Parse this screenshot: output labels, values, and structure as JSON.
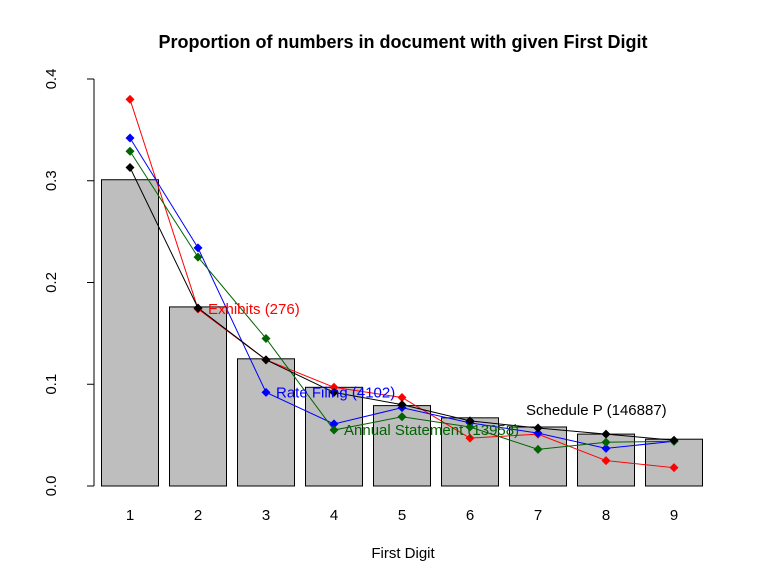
{
  "chart_data": {
    "type": "bar",
    "title": "Proportion of numbers in document with given First Digit",
    "xlabel": "First Digit",
    "ylabel": "",
    "ylim": [
      0,
      0.4
    ],
    "y_ticks": [
      "0.0",
      "0.1",
      "0.2",
      "0.3",
      "0.4"
    ],
    "y_tick_values": [
      0,
      0.1,
      0.2,
      0.3,
      0.4
    ],
    "categories": [
      "1",
      "2",
      "3",
      "4",
      "5",
      "6",
      "7",
      "8",
      "9"
    ],
    "bar_color": "#bebebe",
    "bars": [
      0.301,
      0.176,
      0.125,
      0.097,
      0.079,
      0.067,
      0.058,
      0.051,
      0.046
    ],
    "grid": false,
    "series": [
      {
        "name": "Exhibits (276)",
        "color": "#ff0000",
        "values": [
          0.38,
          0.174,
          0.124,
          0.097,
          0.087,
          0.047,
          0.051,
          0.025,
          0.018
        ],
        "label_at": 1
      },
      {
        "name": "Rate Filing (4102)",
        "color": "#0000ff",
        "values": [
          0.342,
          0.234,
          0.092,
          0.061,
          0.077,
          0.062,
          0.052,
          0.037,
          0.044
        ],
        "label_at": 2
      },
      {
        "name": "Annual Statement (13958)",
        "color": "#006400",
        "values": [
          0.329,
          0.225,
          0.145,
          0.055,
          0.068,
          0.058,
          0.036,
          0.043,
          0.044
        ],
        "label_at": 3
      },
      {
        "name": "Schedule P (146887)",
        "color": "#000000",
        "values": [
          0.313,
          0.175,
          0.124,
          0.092,
          0.08,
          0.064,
          0.057,
          0.051,
          0.045
        ],
        "label_at": 6
      }
    ]
  }
}
